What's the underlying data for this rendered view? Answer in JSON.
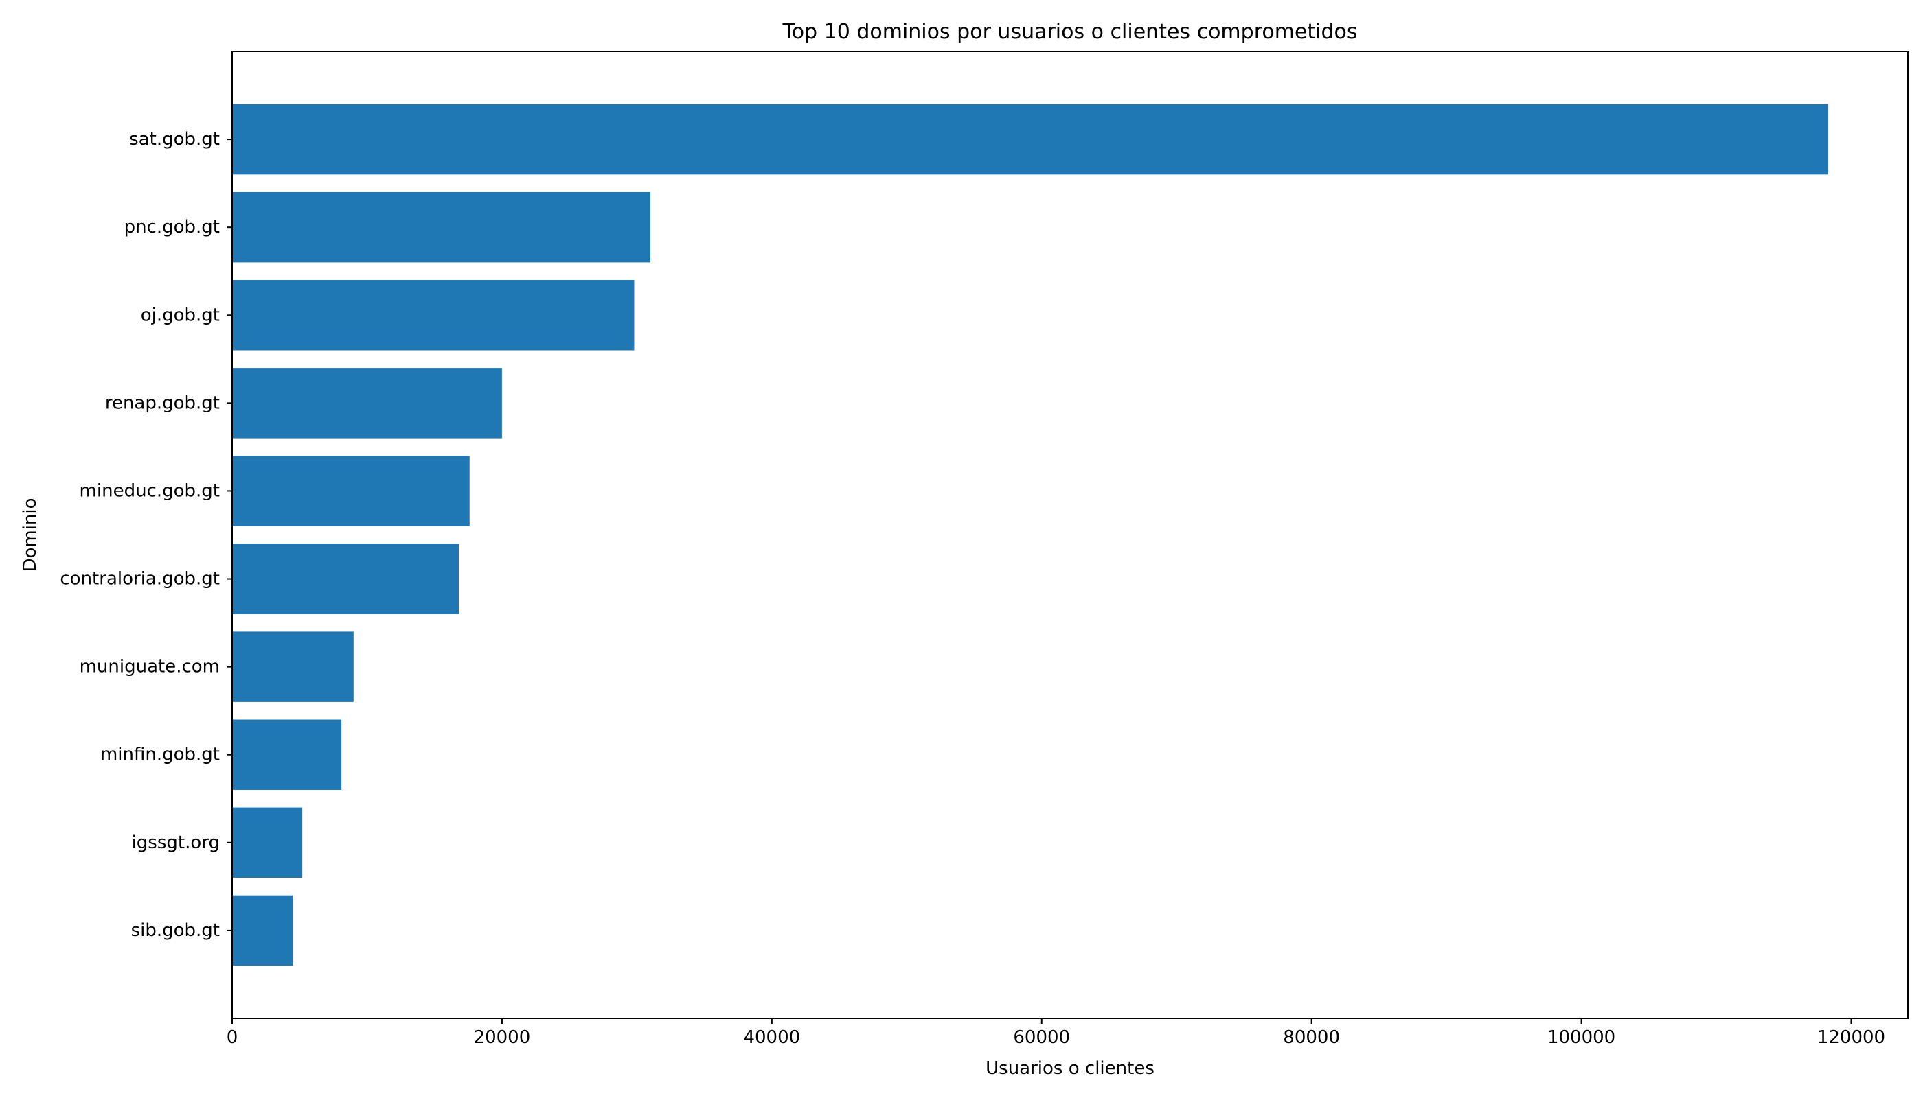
{
  "chart_data": {
    "type": "bar",
    "orientation": "horizontal",
    "title": "Top 10 dominios por usuarios o clientes comprometidos",
    "xlabel": "Usuarios o clientes",
    "ylabel": "Dominio",
    "categories": [
      "sat.gob.gt",
      "pnc.gob.gt",
      "oj.gob.gt",
      "renap.gob.gt",
      "mineduc.gob.gt",
      "contraloria.gob.gt",
      "muniguate.com",
      "minfin.gob.gt",
      "igssgt.org",
      "sib.gob.gt"
    ],
    "values": [
      118300,
      31000,
      29800,
      20000,
      17600,
      16800,
      9000,
      8100,
      5200,
      4500
    ],
    "xlim": [
      0,
      124200
    ],
    "xticks": [
      0,
      20000,
      40000,
      60000,
      80000,
      100000,
      120000
    ],
    "xtick_labels": [
      "0",
      "20000",
      "40000",
      "60000",
      "80000",
      "100000",
      "120000"
    ],
    "grid": false,
    "legend": "none",
    "colors": {
      "bar": "#1f77b4",
      "axis": "#000000",
      "text": "#000000",
      "background": "#ffffff"
    }
  }
}
